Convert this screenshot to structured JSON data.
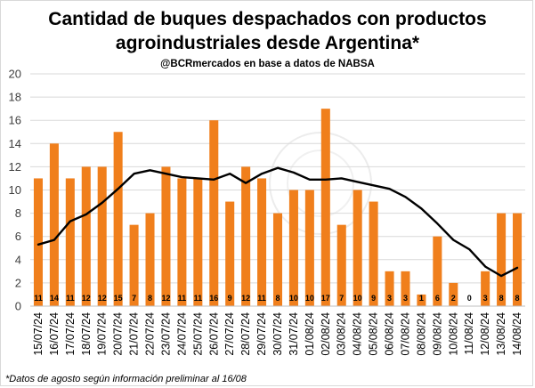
{
  "header": {
    "title_line1": "Cantidad de buques despachados con productos",
    "title_line2": "agroindustriales desde Argentina*",
    "subtitle": "@BCRmercados en base a datos de NABSA"
  },
  "footnote": "*Datos de agosto según información preliminar al 16/08",
  "colors": {
    "bar": "#F07F1C",
    "line": "#000000",
    "grid": "#d9d9d9"
  },
  "chart_data": {
    "type": "bar",
    "ylim": [
      0,
      20
    ],
    "yticks": [
      0,
      2,
      4,
      6,
      8,
      10,
      12,
      14,
      16,
      18,
      20
    ],
    "grid": true,
    "legend": "none",
    "categories": [
      "15/07/24",
      "16/07/24",
      "17/07/24",
      "18/07/24",
      "19/07/24",
      "20/07/24",
      "21/07/24",
      "22/07/24",
      "23/07/24",
      "24/07/24",
      "25/07/24",
      "26/07/24",
      "27/07/24",
      "28/07/24",
      "29/07/24",
      "30/07/24",
      "31/07/24",
      "01/08/24",
      "02/08/24",
      "03/08/24",
      "04/08/24",
      "05/08/24",
      "06/08/24",
      "07/08/24",
      "08/08/24",
      "09/08/24",
      "10/08/24",
      "11/08/24",
      "12/08/24",
      "13/08/24",
      "14/08/24"
    ],
    "series": [
      {
        "type": "bar",
        "values": [
          11,
          14,
          11,
          12,
          12,
          15,
          7,
          8,
          12,
          11,
          11,
          16,
          9,
          12,
          11,
          8,
          10,
          10,
          17,
          7,
          10,
          9,
          3,
          3,
          1,
          6,
          2,
          0,
          3,
          8,
          8
        ]
      },
      {
        "type": "line",
        "values": [
          5.3,
          5.7,
          7.3,
          7.9,
          8.9,
          10.1,
          11.4,
          11.7,
          11.4,
          11.1,
          11.0,
          10.9,
          11.4,
          10.6,
          11.4,
          11.9,
          11.5,
          10.9,
          10.9,
          11.0,
          10.7,
          10.4,
          10.1,
          9.4,
          8.4,
          7.1,
          5.7,
          4.9,
          3.4,
          2.6,
          3.3
        ]
      }
    ]
  }
}
